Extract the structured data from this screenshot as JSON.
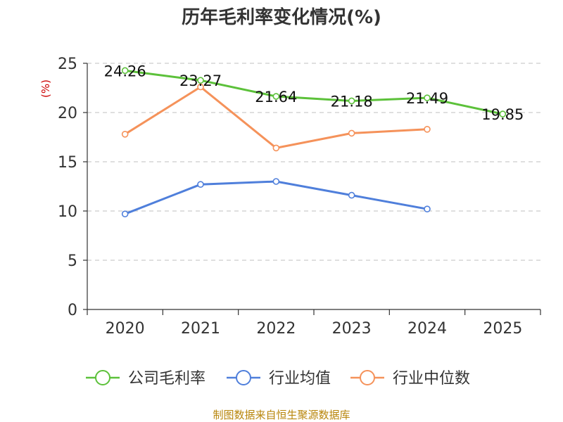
{
  "chart_data": {
    "type": "line",
    "title": "历年毛利率变化情况(%)",
    "ylabel": "(%)",
    "xlabel": "",
    "categories": [
      "2020",
      "2021",
      "2022",
      "2023",
      "2024",
      "2025"
    ],
    "ylim": [
      0,
      25
    ],
    "yticks": [
      0,
      5,
      10,
      15,
      20,
      25
    ],
    "grid": true,
    "legend_position": "bottom",
    "series": [
      {
        "name": "公司毛利率",
        "color": "#5cc13a",
        "values": [
          24.26,
          23.27,
          21.64,
          21.18,
          21.49,
          19.85
        ],
        "show_labels": true
      },
      {
        "name": "行业均值",
        "color": "#4f7fdb",
        "values": [
          9.7,
          12.7,
          13.0,
          11.6,
          10.2,
          null
        ],
        "show_labels": false
      },
      {
        "name": "行业中位数",
        "color": "#f5925a",
        "values": [
          17.8,
          22.6,
          16.4,
          17.9,
          18.3,
          null
        ],
        "show_labels": false
      }
    ],
    "source_note": "制图数据来自恒生聚源数据库"
  }
}
